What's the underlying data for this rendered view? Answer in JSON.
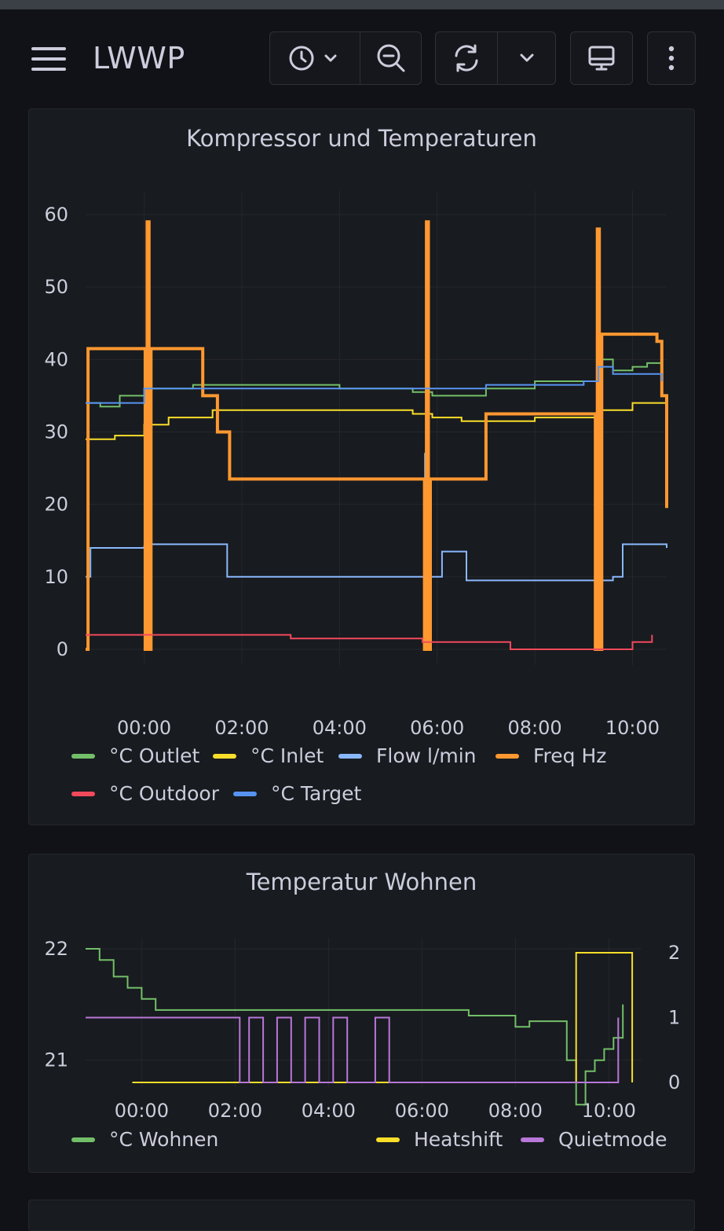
{
  "app": {
    "title": "LWWP"
  },
  "toolbar": {
    "time_picker_icon": "clock-icon",
    "zoom_out_icon": "zoom-out-icon",
    "refresh_icon": "refresh-icon",
    "refresh_interval_icon": "chevron-down-icon",
    "tv_mode_icon": "monitor-icon",
    "more_icon": "kebab-menu-icon"
  },
  "panels": [
    {
      "title": "Kompressor und Temperaturen",
      "legend": [
        {
          "label": "°C Outlet",
          "color": "#73bf69"
        },
        {
          "label": "°C Inlet",
          "color": "#fade2a"
        },
        {
          "label": "Flow l/min",
          "color": "#8ab8ff"
        },
        {
          "label": "Freq Hz",
          "color": "#ff9830"
        },
        {
          "label": "°C Outdoor",
          "color": "#f2495c"
        },
        {
          "label": "°C Target",
          "color": "#5794f2"
        }
      ],
      "y_ticks": [
        "60",
        "50",
        "40",
        "30",
        "20",
        "10",
        "0"
      ],
      "x_ticks": [
        "00:00",
        "02:00",
        "04:00",
        "06:00",
        "08:00",
        "10:00"
      ]
    },
    {
      "title": "Temperatur Wohnen",
      "legend": [
        {
          "label": "°C Wohnen",
          "color": "#73bf69"
        },
        {
          "label": "Heatshift",
          "color": "#fade2a"
        },
        {
          "label": "Quietmode",
          "color": "#b877d9"
        }
      ],
      "y_left_ticks": [
        "22",
        "21"
      ],
      "y_right_ticks": [
        "2",
        "1",
        "0"
      ],
      "x_ticks": [
        "00:00",
        "02:00",
        "04:00",
        "06:00",
        "08:00",
        "10:00"
      ]
    }
  ],
  "chart_data": [
    {
      "type": "line",
      "title": "Kompressor und Temperaturen",
      "xlabel": "",
      "ylabel": "",
      "x_unit": "hours relative to 00:00",
      "xlim": [
        -1.2,
        10.7
      ],
      "ylim": [
        0,
        60
      ],
      "grid": true,
      "legend_position": "bottom",
      "series": [
        {
          "name": "°C Outlet",
          "color": "#73bf69",
          "points": [
            [
              -1.2,
              34
            ],
            [
              -0.9,
              33.5
            ],
            [
              -0.5,
              35
            ],
            [
              0,
              36
            ],
            [
              0.5,
              36
            ],
            [
              1,
              36.5
            ],
            [
              2,
              36.5
            ],
            [
              4,
              36
            ],
            [
              5.5,
              35.5
            ],
            [
              5.9,
              35
            ],
            [
              6.5,
              35
            ],
            [
              7,
              36
            ],
            [
              8,
              37
            ],
            [
              9,
              37
            ],
            [
              9.3,
              40
            ],
            [
              9.6,
              38.5
            ],
            [
              10,
              39
            ],
            [
              10.3,
              39.5
            ],
            [
              10.6,
              37
            ]
          ]
        },
        {
          "name": "°C Inlet",
          "color": "#fade2a",
          "points": [
            [
              -1.2,
              29
            ],
            [
              -0.6,
              29.5
            ],
            [
              0,
              31
            ],
            [
              0.5,
              32
            ],
            [
              1,
              32
            ],
            [
              1.4,
              33
            ],
            [
              2,
              33
            ],
            [
              4,
              33
            ],
            [
              5.5,
              32.5
            ],
            [
              5.9,
              32
            ],
            [
              6.5,
              31.5
            ],
            [
              7,
              31.5
            ],
            [
              8,
              32
            ],
            [
              9,
              32
            ],
            [
              9.3,
              33
            ],
            [
              9.6,
              33
            ],
            [
              10,
              34
            ],
            [
              10.7,
              35
            ]
          ]
        },
        {
          "name": "Flow l/min",
          "color": "#8ab8ff",
          "points": [
            [
              -1.2,
              10
            ],
            [
              -1.1,
              14
            ],
            [
              0,
              14.2
            ],
            [
              0.1,
              14.2
            ],
            [
              0.12,
              27
            ],
            [
              0.14,
              14.5
            ],
            [
              1.3,
              14.5
            ],
            [
              1.7,
              10
            ],
            [
              5.7,
              10
            ],
            [
              5.75,
              27
            ],
            [
              5.82,
              10
            ],
            [
              6.1,
              13.5
            ],
            [
              6.6,
              9.5
            ],
            [
              9.3,
              9.5
            ],
            [
              9.32,
              27
            ],
            [
              9.38,
              9.5
            ],
            [
              9.6,
              10
            ],
            [
              9.8,
              14.5
            ],
            [
              10.7,
              14
            ]
          ]
        },
        {
          "name": "Freq Hz",
          "color": "#ff9830",
          "points": [
            [
              -1.2,
              0
            ],
            [
              -1.15,
              41.5
            ],
            [
              0,
              41.5
            ],
            [
              0.02,
              0
            ],
            [
              0.06,
              59
            ],
            [
              0.1,
              0
            ],
            [
              0.14,
              41.5
            ],
            [
              1.1,
              41.5
            ],
            [
              1.2,
              35
            ],
            [
              1.5,
              30
            ],
            [
              1.75,
              23.5
            ],
            [
              5.7,
              23.5
            ],
            [
              5.74,
              0
            ],
            [
              5.78,
              59
            ],
            [
              5.82,
              0
            ],
            [
              5.86,
              23.5
            ],
            [
              6.9,
              23.5
            ],
            [
              7.0,
              32.5
            ],
            [
              9.2,
              32.5
            ],
            [
              9.24,
              0
            ],
            [
              9.28,
              58
            ],
            [
              9.32,
              0
            ],
            [
              9.37,
              43.5
            ],
            [
              10.2,
              43.5
            ],
            [
              10.5,
              42.5
            ],
            [
              10.6,
              35
            ],
            [
              10.7,
              19.5
            ]
          ]
        },
        {
          "name": "°C Outdoor",
          "color": "#f2495c",
          "points": [
            [
              -1.2,
              2
            ],
            [
              2,
              2
            ],
            [
              3,
              1.5
            ],
            [
              5.7,
              1
            ],
            [
              7,
              1
            ],
            [
              7.5,
              0
            ],
            [
              9.6,
              0
            ],
            [
              10,
              1
            ],
            [
              10.4,
              2
            ]
          ]
        },
        {
          "name": "°C Target",
          "color": "#5794f2",
          "points": [
            [
              -1.2,
              34
            ],
            [
              -0.2,
              34
            ],
            [
              0,
              36
            ],
            [
              5.7,
              36
            ],
            [
              5.9,
              36
            ],
            [
              7,
              36
            ],
            [
              7.0,
              36.5
            ],
            [
              9,
              37
            ],
            [
              9.3,
              39
            ],
            [
              9.6,
              38
            ],
            [
              10.5,
              38
            ],
            [
              10.6,
              37
            ]
          ]
        }
      ]
    },
    {
      "type": "line",
      "title": "Temperatur Wohnen",
      "xlabel": "",
      "ylabel": "",
      "x_unit": "hours relative to 00:00",
      "xlim": [
        -1.2,
        10.7
      ],
      "ylim_left": [
        20.8,
        22
      ],
      "ylim_right": [
        0,
        2
      ],
      "grid": true,
      "legend_position": "bottom",
      "series": [
        {
          "name": "°C Wohnen",
          "axis": "left",
          "color": "#73bf69",
          "points": [
            [
              -1.2,
              22
            ],
            [
              -0.9,
              21.9
            ],
            [
              -0.6,
              21.75
            ],
            [
              -0.3,
              21.65
            ],
            [
              0,
              21.55
            ],
            [
              0.3,
              21.45
            ],
            [
              2,
              21.45
            ],
            [
              4,
              21.45
            ],
            [
              6,
              21.45
            ],
            [
              7,
              21.4
            ],
            [
              8,
              21.3
            ],
            [
              8.3,
              21.35
            ],
            [
              9,
              21.35
            ],
            [
              9.1,
              21
            ],
            [
              9.3,
              20.6
            ],
            [
              9.5,
              20.9
            ],
            [
              9.7,
              21
            ],
            [
              9.9,
              21.1
            ],
            [
              10.1,
              21.2
            ],
            [
              10.3,
              21.5
            ]
          ]
        },
        {
          "name": "Heatshift",
          "axis": "right",
          "color": "#fade2a",
          "points": [
            [
              -0.2,
              0
            ],
            [
              9.3,
              0
            ],
            [
              9.3,
              2
            ],
            [
              10.5,
              2
            ],
            [
              10.5,
              0
            ]
          ]
        },
        {
          "name": "Quietmode",
          "axis": "right",
          "color": "#b877d9",
          "points": [
            [
              -1.2,
              1
            ],
            [
              2.1,
              1
            ],
            [
              2.1,
              0
            ],
            [
              2.3,
              0
            ],
            [
              2.3,
              1
            ],
            [
              2.6,
              1
            ],
            [
              2.6,
              0
            ],
            [
              2.9,
              0
            ],
            [
              2.9,
              1
            ],
            [
              3.2,
              1
            ],
            [
              3.2,
              0
            ],
            [
              3.5,
              0
            ],
            [
              3.5,
              1
            ],
            [
              3.8,
              1
            ],
            [
              3.8,
              0
            ],
            [
              4.1,
              0
            ],
            [
              4.1,
              1
            ],
            [
              4.4,
              1
            ],
            [
              4.4,
              0
            ],
            [
              5.0,
              0
            ],
            [
              5.0,
              1
            ],
            [
              5.3,
              1
            ],
            [
              5.3,
              0
            ],
            [
              10.2,
              0
            ],
            [
              10.2,
              1
            ]
          ]
        }
      ]
    }
  ]
}
